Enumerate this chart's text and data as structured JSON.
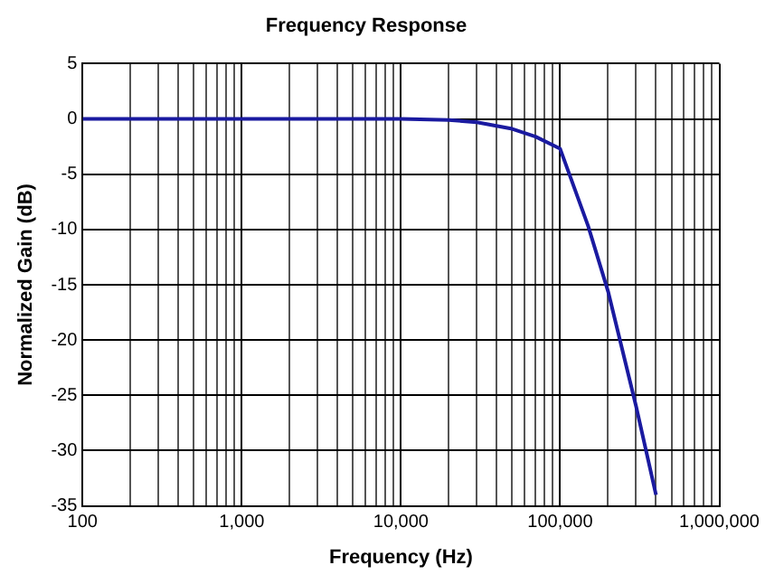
{
  "chart_data": {
    "type": "line",
    "title": "Frequency Response",
    "xlabel": "Frequency (Hz)",
    "ylabel": "Normalized Gain (dB)",
    "log": "x",
    "grid": true,
    "legend": false,
    "marker": "none",
    "line_style": "solid",
    "xlim": [
      100,
      1000000
    ],
    "ylim": [
      -35,
      5
    ],
    "xticks": [
      {
        "value": 100,
        "label": "100"
      },
      {
        "value": 200,
        "label": null
      },
      {
        "value": 300,
        "label": null
      },
      {
        "value": 400,
        "label": null
      },
      {
        "value": 500,
        "label": null
      },
      {
        "value": 600,
        "label": null
      },
      {
        "value": 700,
        "label": null
      },
      {
        "value": 800,
        "label": null
      },
      {
        "value": 900,
        "label": null
      },
      {
        "value": 1000,
        "label": "1,000"
      },
      {
        "value": 2000,
        "label": null
      },
      {
        "value": 3000,
        "label": null
      },
      {
        "value": 4000,
        "label": null
      },
      {
        "value": 5000,
        "label": null
      },
      {
        "value": 6000,
        "label": null
      },
      {
        "value": 7000,
        "label": null
      },
      {
        "value": 8000,
        "label": null
      },
      {
        "value": 9000,
        "label": null
      },
      {
        "value": 10000,
        "label": "10,000"
      },
      {
        "value": 20000,
        "label": null
      },
      {
        "value": 30000,
        "label": null
      },
      {
        "value": 40000,
        "label": null
      },
      {
        "value": 50000,
        "label": null
      },
      {
        "value": 60000,
        "label": null
      },
      {
        "value": 70000,
        "label": null
      },
      {
        "value": 80000,
        "label": null
      },
      {
        "value": 90000,
        "label": null
      },
      {
        "value": 100000,
        "label": "100,000"
      },
      {
        "value": 200000,
        "label": null
      },
      {
        "value": 300000,
        "label": null
      },
      {
        "value": 400000,
        "label": null
      },
      {
        "value": 500000,
        "label": null
      },
      {
        "value": 600000,
        "label": null
      },
      {
        "value": 700000,
        "label": null
      },
      {
        "value": 800000,
        "label": null
      },
      {
        "value": 900000,
        "label": null
      },
      {
        "value": 1000000,
        "label": "1,000,000"
      }
    ],
    "yticks": [
      -35,
      -30,
      -25,
      -20,
      -15,
      -10,
      -5,
      0,
      5
    ],
    "series": [
      {
        "color": "#1a1aa0",
        "x": [
          100,
          1000,
          10000,
          20000,
          30000,
          50000,
          70000,
          100000,
          150000,
          200000,
          300000,
          400000
        ],
        "values": [
          0,
          0,
          0,
          -0.1,
          -0.3,
          -0.9,
          -1.6,
          -2.7,
          -9.7,
          -15.6,
          -26,
          -34
        ]
      }
    ]
  }
}
